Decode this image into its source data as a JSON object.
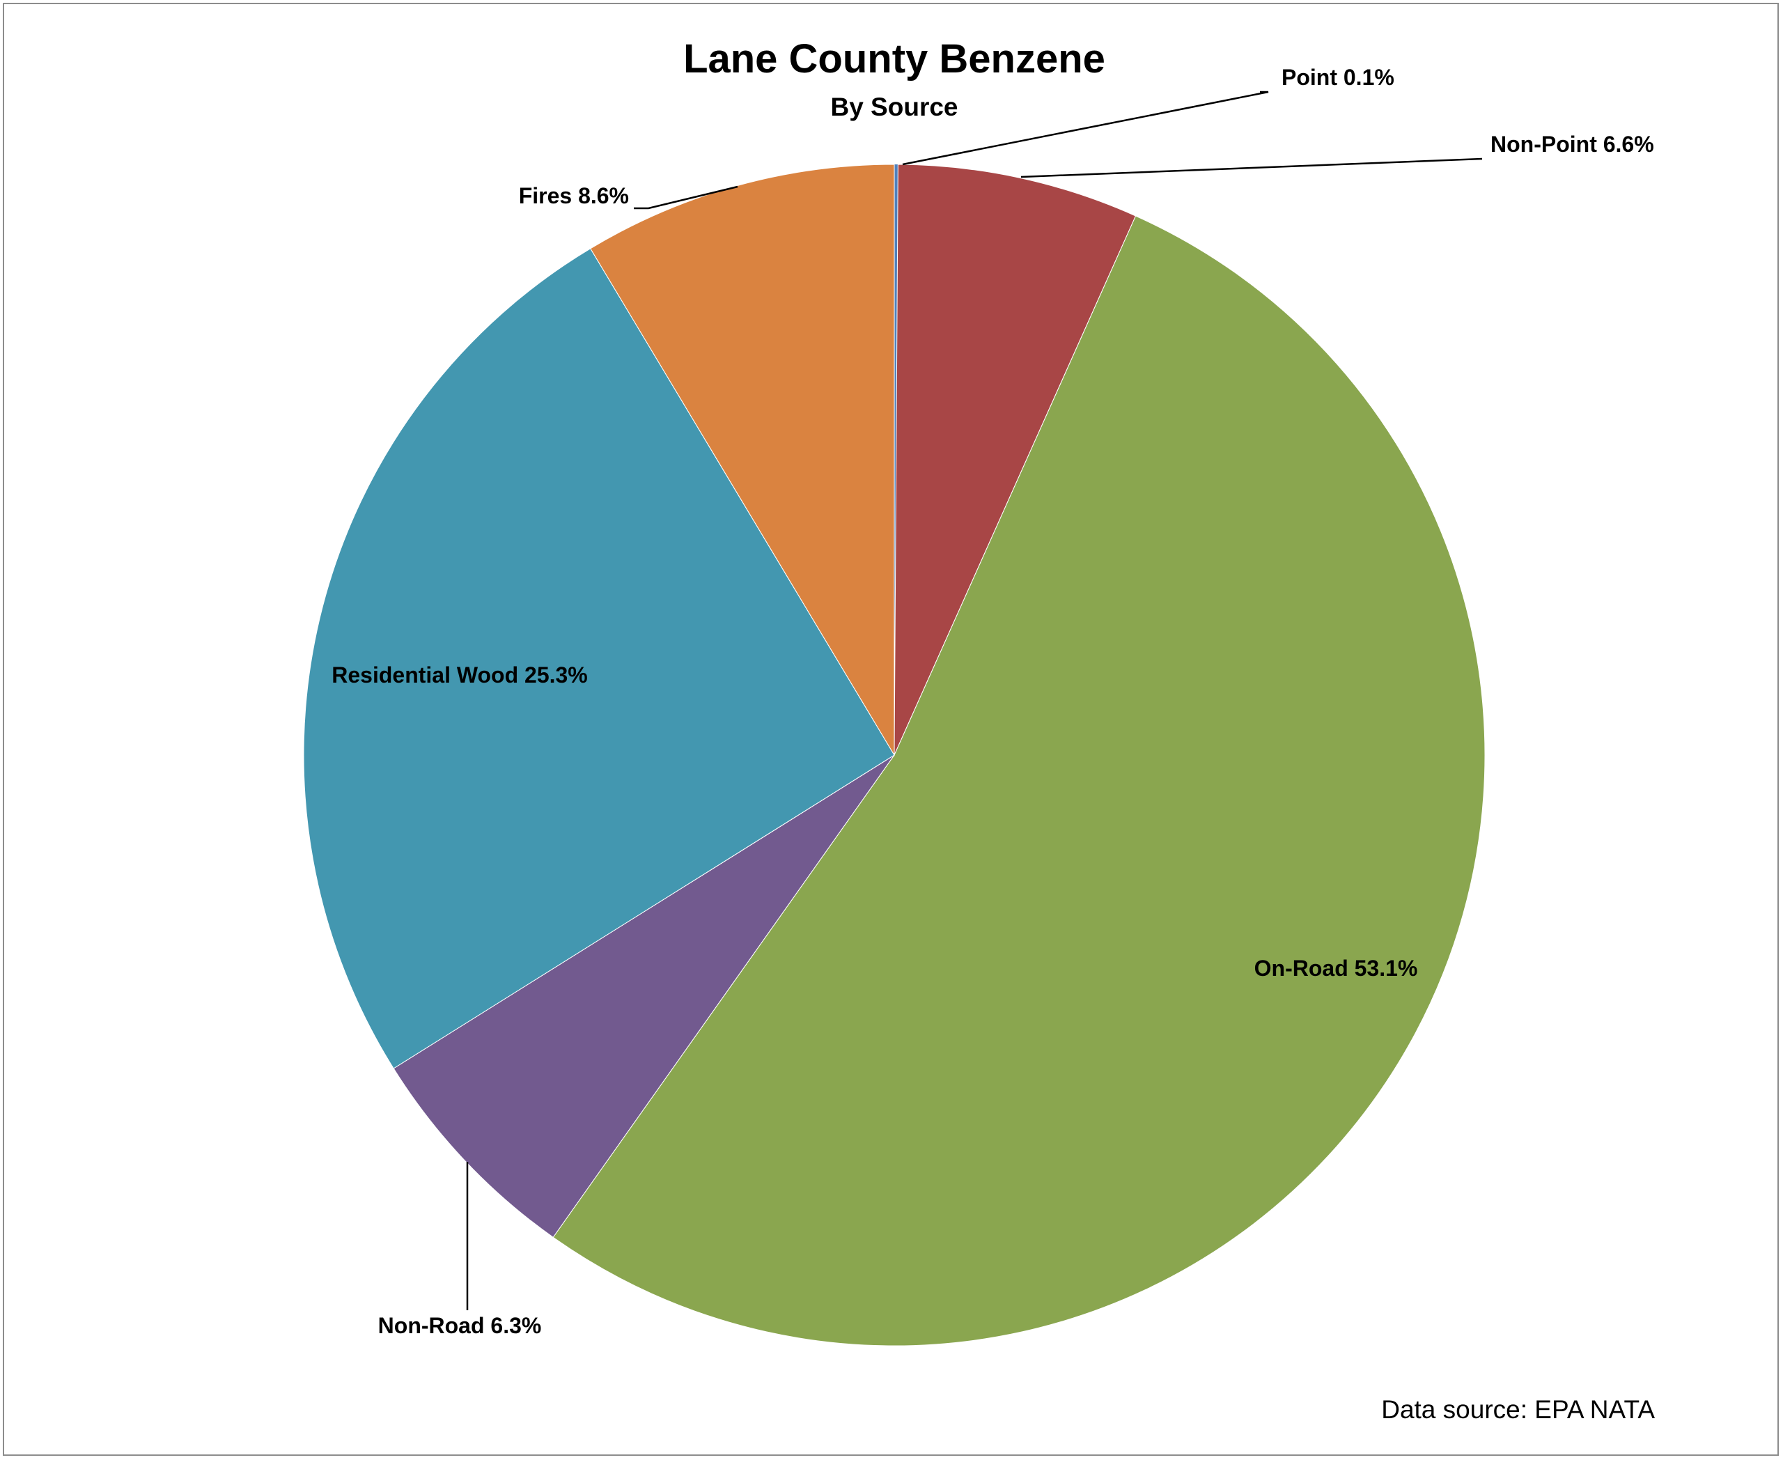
{
  "chart_data": {
    "type": "pie",
    "title": "Lane County Benzene",
    "subtitle": "By Source",
    "start_angle_deg": 0,
    "direction": "clockwise",
    "slices": [
      {
        "label": "Point",
        "value": 0.1,
        "value_label": "Point 0.1%",
        "color": "#4f81bd"
      },
      {
        "label": "Non-Point",
        "value": 6.6,
        "value_label": "Non-Point 6.6%",
        "color": "#a84646"
      },
      {
        "label": "On-Road",
        "value": 53.1,
        "value_label": "On-Road 53.1%",
        "color": "#8aa64f"
      },
      {
        "label": "Non-Road",
        "value": 6.3,
        "value_label": "Non-Road 6.3%",
        "color": "#725a8f"
      },
      {
        "label": "Residential Wood",
        "value": 25.3,
        "value_label": "Residential Wood 25.3%",
        "color": "#4397b0"
      },
      {
        "label": "Fires",
        "value": 8.6,
        "value_label": "Fires 8.6%",
        "color": "#da8340"
      }
    ],
    "note": "Data source: EPA NATA",
    "legend": "none"
  }
}
